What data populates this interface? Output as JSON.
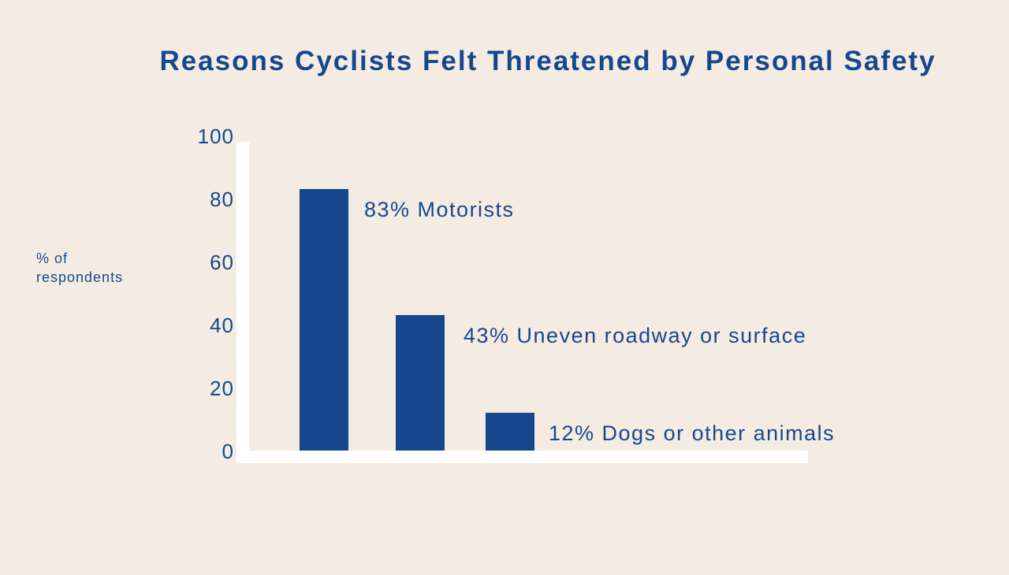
{
  "chart_data": {
    "type": "bar",
    "title": "Reasons Cyclists Felt Threatened by Personal Safety",
    "xlabel": "",
    "ylabel": "% of respondents",
    "ylim": [
      0,
      100
    ],
    "yticks": [
      0,
      20,
      40,
      60,
      80,
      100
    ],
    "grid": false,
    "categories": [
      "Motorists",
      "Uneven roadway or surface",
      "Dogs or other animals"
    ],
    "values": [
      83,
      43,
      12
    ],
    "data_labels": [
      "83% Motorists",
      "43% Uneven roadway or surface",
      "12% Dogs or other animals"
    ],
    "colors": {
      "bar": "#16478d",
      "text": "#16478d",
      "axis": "#ffffff",
      "background": "#f4ece3"
    }
  }
}
